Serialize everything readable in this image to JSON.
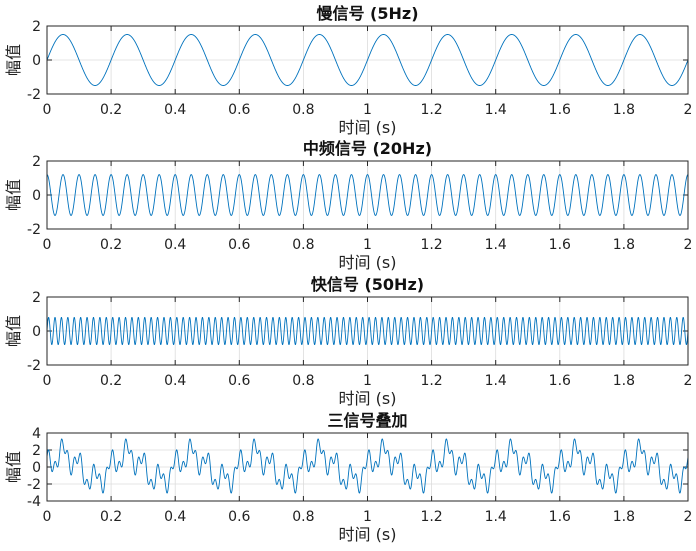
{
  "chart_data": [
    {
      "type": "line",
      "title": "慢信号 (5Hz)",
      "xlabel": "时间 (s)",
      "ylabel": "幅值",
      "xlim": [
        0,
        2
      ],
      "ylim": [
        -2,
        2
      ],
      "xticks": [
        "0",
        "0.2",
        "0.4",
        "0.6",
        "0.8",
        "1",
        "1.2",
        "1.4",
        "1.6",
        "1.8",
        "2"
      ],
      "yticks": [
        "-2",
        "0",
        "2"
      ],
      "grid": true,
      "series": [
        {
          "function": "sine",
          "amplitude": 1.5,
          "frequency_hz": 5,
          "color": "#0072BD"
        }
      ]
    },
    {
      "type": "line",
      "title": "中频信号 (20Hz)",
      "xlabel": "时间 (s)",
      "ylabel": "幅值",
      "xlim": [
        0,
        2
      ],
      "ylim": [
        -2,
        2
      ],
      "xticks": [
        "0",
        "0.2",
        "0.4",
        "0.6",
        "0.8",
        "1",
        "1.2",
        "1.4",
        "1.6",
        "1.8",
        "2"
      ],
      "yticks": [
        "-2",
        "0",
        "2"
      ],
      "grid": true,
      "series": [
        {
          "function": "cosine",
          "amplitude": 1.2,
          "frequency_hz": 20,
          "color": "#0072BD"
        }
      ]
    },
    {
      "type": "line",
      "title": "快信号 (50Hz)",
      "xlabel": "时间 (s)",
      "ylabel": "幅值",
      "xlim": [
        0,
        2
      ],
      "ylim": [
        -2,
        2
      ],
      "xticks": [
        "0",
        "0.2",
        "0.4",
        "0.6",
        "0.8",
        "1",
        "1.2",
        "1.4",
        "1.6",
        "1.8",
        "2"
      ],
      "yticks": [
        "-2",
        "0",
        "2"
      ],
      "grid": true,
      "series": [
        {
          "function": "sine",
          "amplitude": 0.8,
          "frequency_hz": 50,
          "color": "#0072BD"
        }
      ]
    },
    {
      "type": "line",
      "title": "三信号叠加",
      "xlabel": "时间 (s)",
      "ylabel": "幅值",
      "xlim": [
        0,
        2
      ],
      "ylim": [
        -4,
        4
      ],
      "xticks": [
        "0",
        "0.2",
        "0.4",
        "0.6",
        "0.8",
        "1",
        "1.2",
        "1.4",
        "1.6",
        "1.8",
        "2"
      ],
      "yticks": [
        "-4",
        "-2",
        "0",
        "2",
        "4"
      ],
      "grid": true,
      "series": [
        {
          "function": "sum of the three signals above",
          "color": "#0072BD"
        }
      ]
    }
  ]
}
